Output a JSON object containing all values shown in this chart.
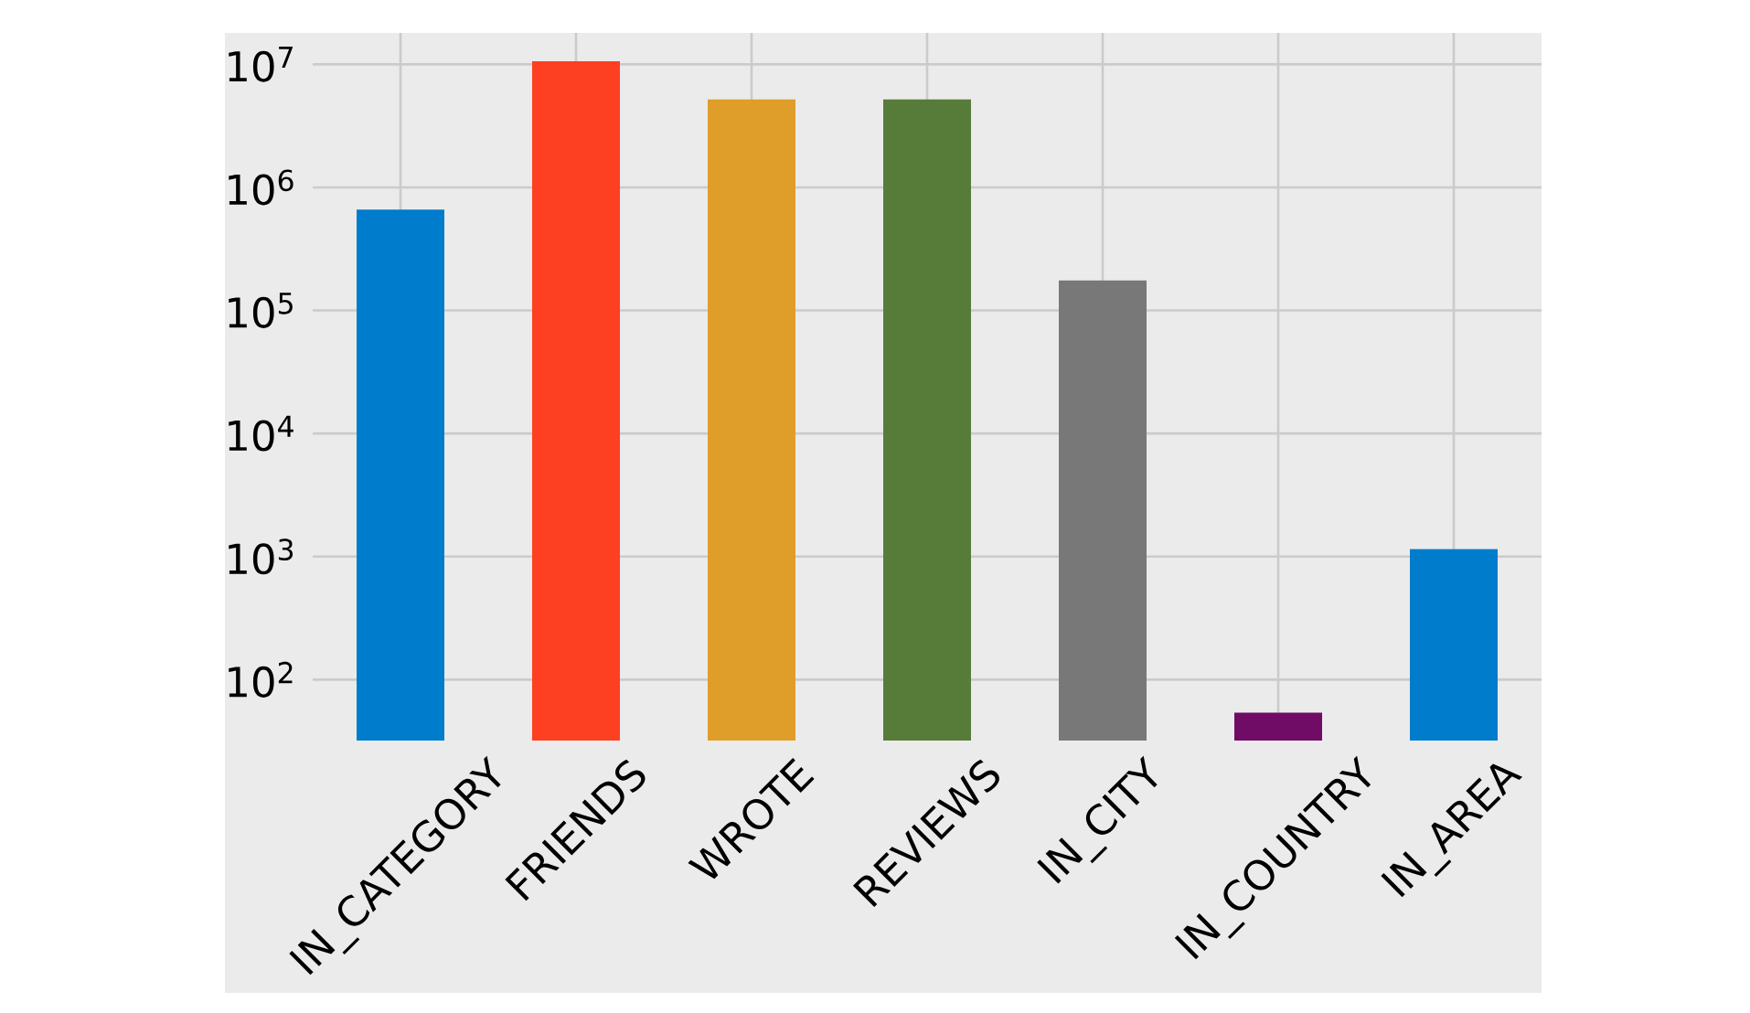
{
  "chart_data": {
    "type": "bar",
    "categories": [
      "IN_CATEGORY",
      "FRIENDS",
      "WROTE",
      "REVIEWS",
      "IN_CITY",
      "IN_COUNTRY",
      "IN_AREA"
    ],
    "values": [
      660000,
      10600000,
      5200000,
      5200000,
      175000,
      54,
      1150
    ],
    "colors": [
      "#007ccc",
      "#fd3f22",
      "#df9e29",
      "#577c3a",
      "#787878",
      "#700b66",
      "#007ccc"
    ],
    "log": true,
    "ylim": [
      32,
      18000000
    ],
    "yticks": [
      {
        "value": 100,
        "label": "10$^{2}$"
      },
      {
        "value": 1000,
        "label": "10$^{3}$"
      },
      {
        "value": 10000,
        "label": "10$^{4}$"
      },
      {
        "value": 100000,
        "label": "10$^{5}$"
      },
      {
        "value": 1000000,
        "label": "10$^{6}$"
      },
      {
        "value": 10000000,
        "label": "10$^{7}$"
      }
    ],
    "grid": true
  }
}
